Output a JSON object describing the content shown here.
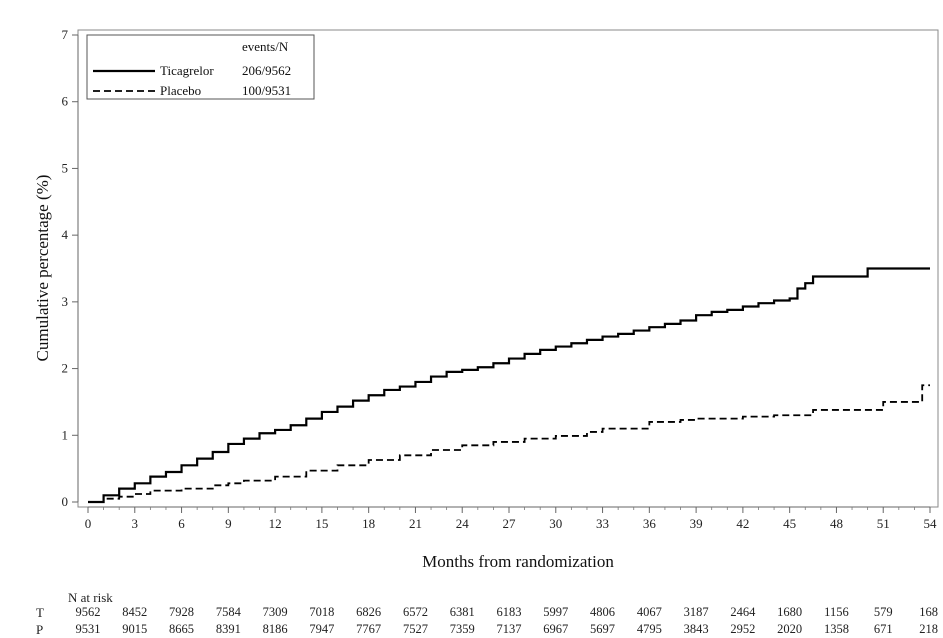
{
  "chart_data": {
    "type": "line",
    "title": "",
    "xlabel": "Months from randomization",
    "ylabel": "Cumulative percentage (%)",
    "xlim": [
      0,
      54
    ],
    "ylim": [
      0,
      7
    ],
    "x_ticks": [
      0,
      3,
      6,
      9,
      12,
      15,
      18,
      21,
      24,
      27,
      30,
      33,
      36,
      39,
      42,
      45,
      48,
      51,
      54
    ],
    "y_ticks": [
      0,
      1,
      2,
      3,
      4,
      5,
      6,
      7
    ],
    "grid": false,
    "legend": {
      "placement": "top-left",
      "header": "events/N",
      "entries": [
        {
          "name": "Ticagrelor",
          "events": "206/9562",
          "style": "solid"
        },
        {
          "name": "Placebo",
          "events": "100/9531",
          "style": "dashed"
        }
      ]
    },
    "series": [
      {
        "name": "Ticagrelor",
        "style": "solid",
        "x": [
          0,
          1,
          2,
          3,
          4,
          5,
          6,
          7,
          8,
          9,
          10,
          11,
          12,
          13,
          14,
          15,
          16,
          17,
          18,
          19,
          20,
          21,
          22,
          23,
          24,
          25,
          26,
          27,
          28,
          29,
          30,
          31,
          32,
          33,
          34,
          35,
          36,
          37,
          38,
          39,
          40,
          41,
          42,
          43,
          44,
          45,
          45.5,
          46,
          46.5,
          49.5,
          50,
          54
        ],
        "y": [
          0,
          0.1,
          0.2,
          0.28,
          0.38,
          0.45,
          0.55,
          0.65,
          0.75,
          0.87,
          0.95,
          1.03,
          1.08,
          1.15,
          1.25,
          1.35,
          1.43,
          1.52,
          1.6,
          1.68,
          1.73,
          1.8,
          1.88,
          1.95,
          1.98,
          2.02,
          2.08,
          2.15,
          2.22,
          2.28,
          2.33,
          2.38,
          2.43,
          2.48,
          2.52,
          2.57,
          2.62,
          2.67,
          2.72,
          2.8,
          2.85,
          2.88,
          2.93,
          2.98,
          3.02,
          3.05,
          3.2,
          3.28,
          3.38,
          3.38,
          3.5,
          3.5
        ]
      },
      {
        "name": "Placebo",
        "style": "dashed",
        "x": [
          0,
          1,
          2,
          3,
          4,
          6,
          8,
          9,
          10,
          12,
          14,
          16,
          18,
          20,
          22,
          24,
          26,
          28,
          30,
          32,
          33,
          36,
          38,
          39,
          42,
          44,
          46,
          46.5,
          50,
          51,
          53,
          53.5,
          54
        ],
        "y": [
          0,
          0.05,
          0.08,
          0.12,
          0.17,
          0.2,
          0.25,
          0.28,
          0.32,
          0.38,
          0.47,
          0.55,
          0.63,
          0.7,
          0.78,
          0.85,
          0.9,
          0.95,
          0.99,
          1.05,
          1.1,
          1.2,
          1.23,
          1.25,
          1.28,
          1.3,
          1.3,
          1.38,
          1.38,
          1.5,
          1.5,
          1.75,
          1.75
        ]
      }
    ],
    "at_risk": {
      "title": "N at risk",
      "months": [
        0,
        3,
        6,
        9,
        12,
        15,
        18,
        21,
        24,
        27,
        30,
        33,
        36,
        39,
        42,
        45,
        48,
        51,
        54
      ],
      "rows": [
        {
          "label": "T",
          "values": [
            "9562",
            "8452",
            "7928",
            "7584",
            "7309",
            "7018",
            "6826",
            "6572",
            "6381",
            "6183",
            "5997",
            "4806",
            "4067",
            "3187",
            "2464",
            "1680",
            "1156",
            "579",
            "168"
          ]
        },
        {
          "label": "P",
          "values": [
            "9531",
            "9015",
            "8665",
            "8391",
            "8186",
            "7947",
            "7767",
            "7527",
            "7359",
            "7137",
            "6967",
            "5697",
            "4795",
            "3843",
            "2952",
            "2020",
            "1358",
            "671",
            "218"
          ]
        }
      ]
    }
  }
}
